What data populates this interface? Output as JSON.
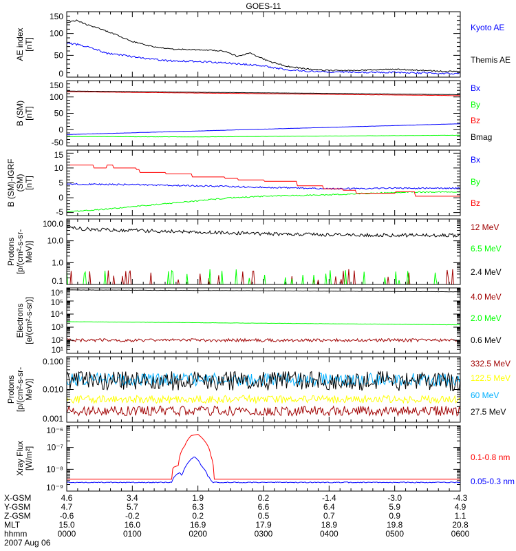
{
  "chart_data": {
    "type": "line",
    "title": "GOES-11",
    "xlabel": "hhmm",
    "xlim_hours": [
      0,
      6
    ],
    "panels": [
      {
        "id": "ae",
        "ylabel": [
          "AE index",
          "[nT]"
        ],
        "ylog": false,
        "ylim": [
          0,
          150
        ],
        "ticks": [
          0,
          50,
          100,
          150
        ],
        "tick_labels": [
          "0",
          "50",
          "100",
          "150"
        ],
        "minor": 5,
        "series": [
          {
            "name": "Kyoto AE",
            "color": "#0000ff",
            "noise": 2,
            "points": [
              [
                0,
                78
              ],
              [
                0.2,
                74
              ],
              [
                0.4,
                66
              ],
              [
                0.6,
                55
              ],
              [
                1,
                47
              ],
              [
                1.5,
                38
              ],
              [
                2,
                36
              ],
              [
                2.5,
                32
              ],
              [
                3,
                26
              ],
              [
                3.3,
                18
              ],
              [
                3.6,
                14
              ],
              [
                4,
                12
              ],
              [
                5,
                11
              ],
              [
                6,
                8
              ]
            ]
          },
          {
            "name": "Themis AE",
            "color": "#000000",
            "noise": 1.5,
            "points": [
              [
                0,
                125
              ],
              [
                0.15,
                130
              ],
              [
                0.35,
                118
              ],
              [
                0.5,
                112
              ],
              [
                0.7,
                100
              ],
              [
                1,
                82
              ],
              [
                1.3,
                70
              ],
              [
                1.6,
                64
              ],
              [
                2,
                63
              ],
              [
                2.4,
                60
              ],
              [
                2.6,
                48
              ],
              [
                2.8,
                55
              ],
              [
                2.95,
                45
              ],
              [
                3.1,
                35
              ],
              [
                3.4,
                24
              ],
              [
                3.7,
                18
              ],
              [
                4,
                15
              ],
              [
                4.5,
                16
              ],
              [
                5,
                18
              ],
              [
                5.5,
                15
              ],
              [
                6,
                12
              ]
            ]
          }
        ]
      },
      {
        "id": "bsm",
        "ylabel": [
          "B (SM)",
          "[nT]"
        ],
        "ylog": false,
        "ylim": [
          -50,
          150
        ],
        "ticks": [
          -50,
          0,
          50,
          100,
          150
        ],
        "tick_labels": [
          "-50",
          "0",
          "50",
          "100",
          "150"
        ],
        "minor": 5,
        "series": [
          {
            "name": "Bx",
            "color": "#0000ff",
            "noise": 0.3,
            "points": [
              [
                0,
                -15
              ],
              [
                6,
                18
              ]
            ]
          },
          {
            "name": "By",
            "color": "#00ff00",
            "noise": 0.3,
            "points": [
              [
                0,
                -21
              ],
              [
                2,
                -22
              ],
              [
                6,
                -17
              ]
            ]
          },
          {
            "name": "Bz",
            "color": "#ff0000",
            "noise": 0.4,
            "points": [
              [
                0,
                116
              ],
              [
                6,
                104
              ]
            ]
          },
          {
            "name": "Bmag",
            "color": "#000000",
            "noise": 0.3,
            "points": [
              [
                0,
                118
              ],
              [
                6,
                107
              ]
            ]
          }
        ]
      },
      {
        "id": "bdiff",
        "ylabel": [
          "B (SM)-IGRF (SM)",
          "[nT]"
        ],
        "ylog": false,
        "ylim": [
          -6,
          16
        ],
        "ticks": [
          -5,
          0,
          5,
          10,
          15
        ],
        "tick_labels": [
          "-5",
          "0",
          "5",
          "10",
          "15"
        ],
        "minor": 5,
        "series": [
          {
            "name": "Bx",
            "color": "#0000ff",
            "noise": 0.25,
            "points": [
              [
                0,
                4.6
              ],
              [
                1,
                4.4
              ],
              [
                2,
                4
              ],
              [
                3,
                3.5
              ],
              [
                4,
                3
              ],
              [
                5,
                3.2
              ],
              [
                6,
                3.2
              ]
            ]
          },
          {
            "name": "By",
            "color": "#00ff00",
            "noise": 0.2,
            "points": [
              [
                0,
                -4.8
              ],
              [
                0.5,
                -4
              ],
              [
                1,
                -3
              ],
              [
                1.5,
                -2
              ],
              [
                2,
                -1
              ],
              [
                2.5,
                0
              ],
              [
                3,
                0.5
              ],
              [
                4,
                1
              ],
              [
                5,
                1.8
              ],
              [
                6,
                2
              ]
            ]
          },
          {
            "name": "Bz",
            "color": "#ff0000",
            "step": true,
            "noise": 0,
            "points": [
              [
                0,
                11
              ],
              [
                0.4,
                10
              ],
              [
                0.6,
                11
              ],
              [
                0.7,
                10
              ],
              [
                1.05,
                9.5
              ],
              [
                1.1,
                8.5
              ],
              [
                1.5,
                8
              ],
              [
                1.9,
                7
              ],
              [
                2.4,
                6.5
              ],
              [
                2.6,
                6
              ],
              [
                3.0,
                5.5
              ],
              [
                3.5,
                4
              ],
              [
                3.9,
                3
              ],
              [
                4.2,
                2.5
              ],
              [
                4.4,
                1.5
              ],
              [
                5,
                2
              ],
              [
                5.3,
                0.5
              ],
              [
                6,
                0.5
              ]
            ]
          }
        ]
      },
      {
        "id": "protons_low",
        "ylabel": [
          "Protons",
          "[p/(cm²-s-sr-MeV)]"
        ],
        "ylog": true,
        "ylim": [
          0.1,
          100
        ],
        "ticks": [
          0.1,
          1,
          10,
          100
        ],
        "tick_labels": [
          "0.1",
          "1.0",
          "10.0",
          "100.0"
        ],
        "series": [
          {
            "name": "12 MeV",
            "color": "#a00000",
            "spiky": true,
            "seed": 7,
            "noise": 0,
            "points": [
              [
                0,
                0.09
              ],
              [
                6,
                0.09
              ]
            ]
          },
          {
            "name": "6.5 MeV",
            "color": "#00ff00",
            "spiky": true,
            "seed": 13,
            "noise": 0,
            "points": [
              [
                0,
                0.09
              ],
              [
                6,
                0.09
              ]
            ]
          },
          {
            "name": "2.4 MeV",
            "color": "#000000",
            "noise": 0.08,
            "points": [
              [
                0,
                40
              ],
              [
                0.5,
                32
              ],
              [
                1,
                30
              ],
              [
                2,
                25
              ],
              [
                3,
                21
              ],
              [
                4,
                19
              ],
              [
                5,
                18
              ],
              [
                6,
                18
              ]
            ]
          }
        ]
      },
      {
        "id": "electrons",
        "ylabel": [
          "Electrons",
          "[e/(cm²-s-sr)]"
        ],
        "ylog": true,
        "ylim": [
          10,
          1000000
        ],
        "ticks": [
          10,
          100,
          1000,
          10000,
          100000,
          1000000
        ],
        "tick_labels": [
          "10¹",
          "10²",
          "10³",
          "10⁴",
          "10⁵",
          "10⁶"
        ],
        "series": [
          {
            "name": "4.0 MeV",
            "color": "#a00000",
            "noise": 0.12,
            "points": [
              [
                0,
                100
              ],
              [
                6,
                100
              ]
            ]
          },
          {
            "name": "2.0 MeV",
            "color": "#00ff00",
            "noise": 0.01,
            "points": [
              [
                0,
                2600
              ],
              [
                3,
                2000
              ],
              [
                6,
                1500
              ]
            ]
          },
          {
            "name": "0.6 MeV",
            "color": "#000000",
            "noise": 0.01,
            "points": [
              [
                0,
                700000
              ],
              [
                6,
                500000
              ]
            ]
          }
        ]
      },
      {
        "id": "protons_high",
        "ylabel": [
          "Protons",
          "[p/(cm²-s-sr-MeV)]"
        ],
        "ylog": true,
        "ylim": [
          0.001,
          0.1
        ],
        "ticks": [
          0.001,
          0.01,
          0.1
        ],
        "tick_labels": [
          "0.001",
          "0.010",
          "0.100"
        ],
        "series": [
          {
            "name": "332.5 MeV",
            "color": "#a00000",
            "noise": 0.15,
            "points": [
              [
                0,
                0.0022
              ],
              [
                6,
                0.0022
              ]
            ]
          },
          {
            "name": "122.5 MeV",
            "color": "#ffff00",
            "noise": 0.12,
            "points": [
              [
                0,
                0.005
              ],
              [
                6,
                0.005
              ]
            ]
          },
          {
            "name": "60 MeV",
            "color": "#00b0ff",
            "noise": 0.2,
            "points": [
              [
                0,
                0.02
              ],
              [
                6,
                0.02
              ]
            ]
          },
          {
            "name": "27.5 MeV",
            "color": "#000000",
            "noise": 0.3,
            "points": [
              [
                0,
                0.018
              ],
              [
                6,
                0.018
              ]
            ]
          }
        ]
      },
      {
        "id": "xray",
        "ylabel": [
          "Xray Flux",
          "[W/m²]"
        ],
        "ylog": true,
        "ylim": [
          1e-09,
          1e-06
        ],
        "ticks": [
          1e-09,
          1e-08,
          1e-07,
          1e-06
        ],
        "tick_labels": [
          "10⁻⁹",
          "10⁻⁸",
          "10⁻⁷",
          "10⁻⁶"
        ],
        "series": [
          {
            "name": "0.1-0.8 nm",
            "color": "#ff0000",
            "noise": 0,
            "points": [
              [
                0,
                3.5e-09
              ],
              [
                1.6,
                3.5e-09
              ],
              [
                1.62,
                1.2e-08
              ],
              [
                1.7,
                1.5e-08
              ],
              [
                1.8,
                1.2e-07
              ],
              [
                1.9,
                3.5e-07
              ],
              [
                2.0,
                4e-07
              ],
              [
                2.1,
                2e-07
              ],
              [
                2.2,
                4e-08
              ],
              [
                2.25,
                3.5e-09
              ],
              [
                6,
                3.5e-09
              ]
            ]
          },
          {
            "name": "0.05-0.3 nm",
            "color": "#0000ff",
            "noise": 0.02,
            "points": [
              [
                0,
                2.5e-09
              ],
              [
                1.6,
                2.5e-09
              ],
              [
                1.65,
                5e-09
              ],
              [
                1.72,
                7e-09
              ],
              [
                1.76,
                5e-09
              ],
              [
                1.85,
                2e-08
              ],
              [
                1.95,
                3.8e-08
              ],
              [
                2.05,
                1.5e-08
              ],
              [
                2.15,
                5e-09
              ],
              [
                2.22,
                2.5e-09
              ],
              [
                6,
                2.5e-09
              ]
            ]
          }
        ]
      }
    ],
    "ephemeris": {
      "rows": [
        {
          "label": "X-GSM",
          "values": [
            "4.6",
            "3.4",
            "1.9",
            "0.2",
            "-1.4",
            "-3.0",
            "-4.3"
          ]
        },
        {
          "label": "Y-GSM",
          "values": [
            "4.7",
            "5.7",
            "6.3",
            "6.6",
            "6.4",
            "5.9",
            "4.9"
          ]
        },
        {
          "label": "Z-GSM",
          "values": [
            "-0.6",
            "-0.2",
            "0.2",
            "0.5",
            "0.7",
            "0.9",
            "1.1"
          ]
        },
        {
          "label": "MLT",
          "values": [
            "15.0",
            "16.0",
            "16.9",
            "17.9",
            "18.9",
            "19.8",
            "20.8"
          ]
        },
        {
          "label": "hhmm",
          "values": [
            "0000",
            "0100",
            "0200",
            "0300",
            "0400",
            "0500",
            "0600"
          ]
        }
      ],
      "date": "2007 Aug 06"
    }
  }
}
